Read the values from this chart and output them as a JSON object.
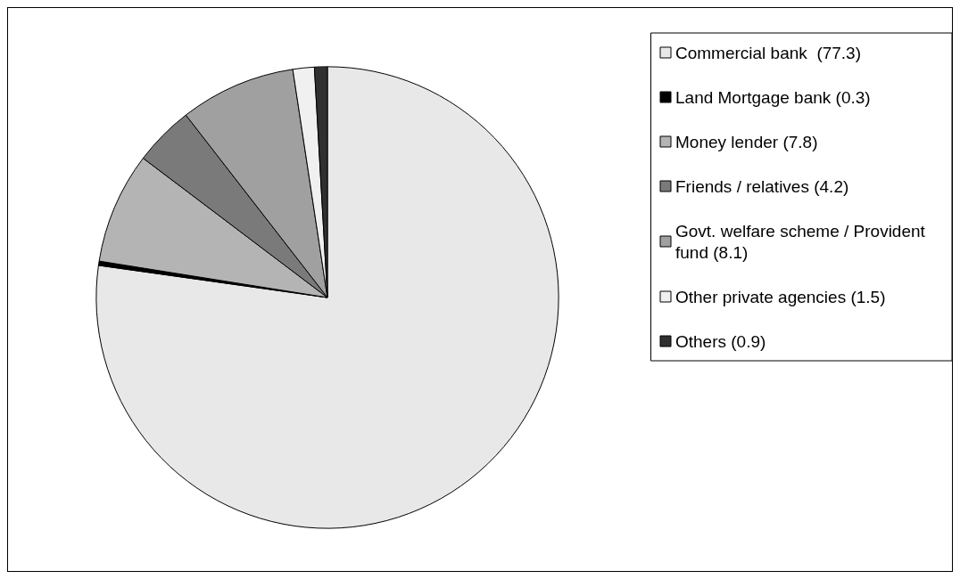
{
  "chart_data": {
    "type": "pie",
    "categories": [
      "Commercial bank  (77.3)",
      "Land Mortgage bank (0.3)",
      "Money lender (7.8)",
      "Friends / relatives (4.2)",
      "Govt. welfare scheme / Provident fund (8.1)",
      "Other private agencies (1.5)",
      "Others (0.9)"
    ],
    "values": [
      77.3,
      0.3,
      7.8,
      4.2,
      8.1,
      1.5,
      0.9
    ],
    "colors": [
      "#e8e8e8",
      "#000000",
      "#b4b4b4",
      "#7a7a7a",
      "#a0a0a0",
      "#f0f0f0",
      "#303030"
    ],
    "legend": "right"
  }
}
